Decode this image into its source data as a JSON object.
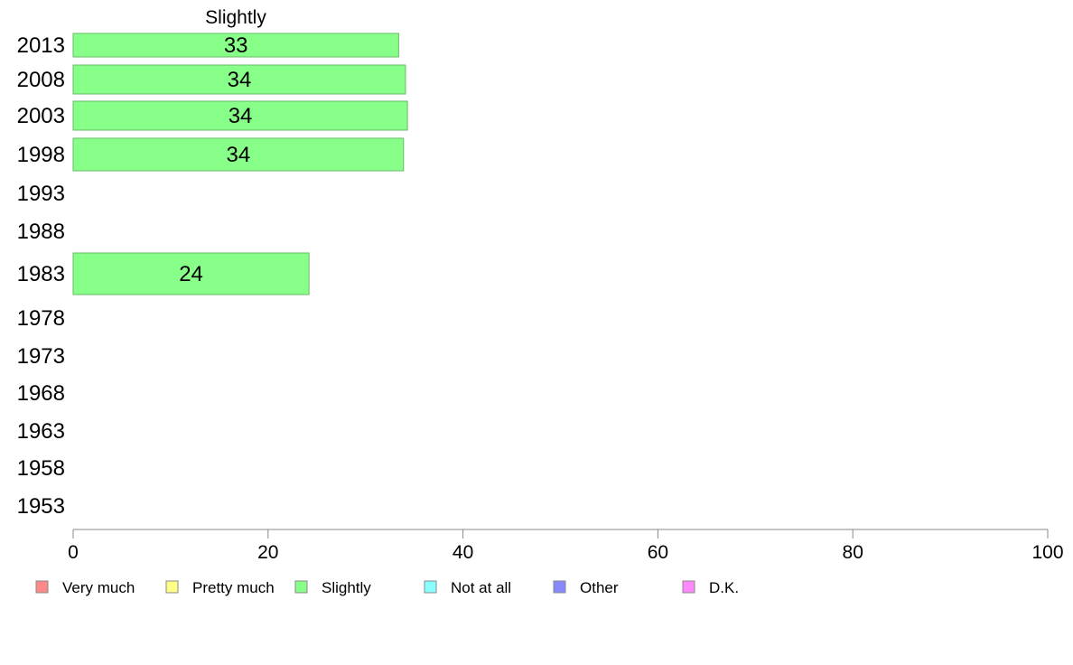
{
  "chart_data": {
    "type": "bar",
    "orientation": "horizontal",
    "title": "Slightly",
    "categories": [
      "2013",
      "2008",
      "2003",
      "1998",
      "1993",
      "1988",
      "1983",
      "1978",
      "1973",
      "1968",
      "1963",
      "1958",
      "1953"
    ],
    "series": [
      {
        "name": "Slightly",
        "color": "#88ff88",
        "values": [
          33.4,
          34.1,
          34.3,
          33.9,
          null,
          null,
          24.2,
          null,
          null,
          null,
          null,
          null,
          null
        ]
      }
    ],
    "value_labels": [
      "33",
      "34",
      "34",
      "34",
      "",
      "",
      "24",
      "",
      "",
      "",
      "",
      "",
      ""
    ],
    "xlim": [
      0,
      100
    ],
    "xticks": [
      "0",
      "20",
      "40",
      "60",
      "80",
      "100"
    ],
    "grid": false,
    "legend_position": "bottom",
    "legend": [
      {
        "label": "Very much",
        "color": "#ff8888"
      },
      {
        "label": "Pretty much",
        "color": "#ffff88"
      },
      {
        "label": "Slightly",
        "color": "#88ff88"
      },
      {
        "label": "Not at all",
        "color": "#88ffff"
      },
      {
        "label": "Other",
        "color": "#8888ff"
      },
      {
        "label": "D.K.",
        "color": "#ff88ff"
      }
    ]
  }
}
